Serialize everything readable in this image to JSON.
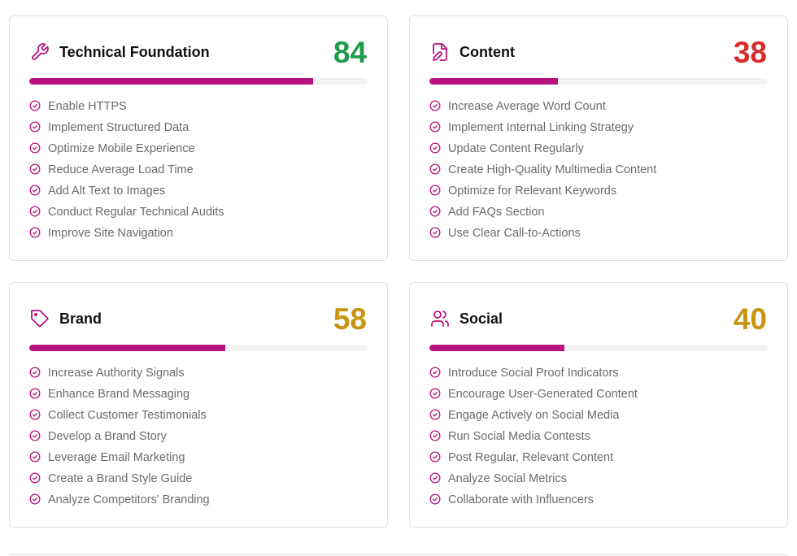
{
  "colors": {
    "accent": "#b8127f",
    "score_high": "#1e9b4b",
    "score_low": "#d62b2b",
    "score_mid": "#c89510"
  },
  "cards": [
    {
      "title": "Technical Foundation",
      "icon": "wrench-icon",
      "score": "84",
      "progress": 0.84,
      "score_color": "#1e9b4b",
      "items": [
        "Enable HTTPS",
        "Implement Structured Data",
        "Optimize Mobile Experience",
        "Reduce Average Load Time",
        "Add Alt Text to Images",
        "Conduct Regular Technical Audits",
        "Improve Site Navigation"
      ]
    },
    {
      "title": "Content",
      "icon": "file-edit-icon",
      "score": "38",
      "progress": 0.38,
      "score_color": "#d62b2b",
      "items": [
        "Increase Average Word Count",
        "Implement Internal Linking Strategy",
        "Update Content Regularly",
        "Create High-Quality Multimedia Content",
        "Optimize for Relevant Keywords",
        "Add FAQs Section",
        "Use Clear Call-to-Actions"
      ]
    },
    {
      "title": "Brand",
      "icon": "tag-icon",
      "score": "58",
      "progress": 0.58,
      "score_color": "#c89510",
      "items": [
        "Increase Authority Signals",
        "Enhance Brand Messaging",
        "Collect Customer Testimonials",
        "Develop a Brand Story",
        "Leverage Email Marketing",
        "Create a Brand Style Guide",
        "Analyze Competitors' Branding"
      ]
    },
    {
      "title": "Social",
      "icon": "users-icon",
      "score": "40",
      "progress": 0.4,
      "score_color": "#c89510",
      "items": [
        "Introduce Social Proof Indicators",
        "Encourage User-Generated Content",
        "Engage Actively on Social Media",
        "Run Social Media Contests",
        "Post Regular, Relevant Content",
        "Analyze Social Metrics",
        "Collaborate with Influencers"
      ]
    }
  ]
}
